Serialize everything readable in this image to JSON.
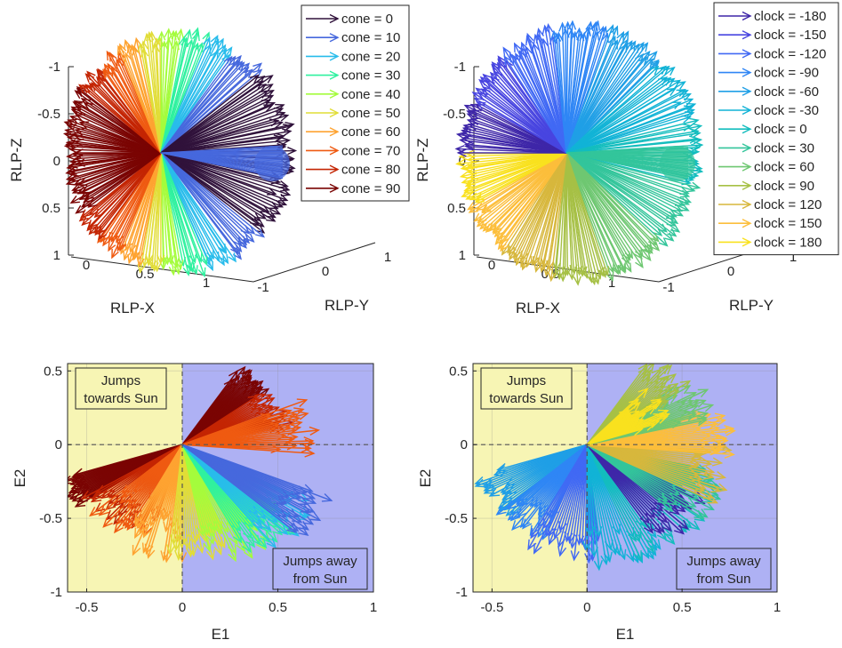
{
  "chart_data": [
    {
      "type": "quiver3d",
      "xlabel": "RLP-X",
      "ylabel": "RLP-Y",
      "zlabel": "RLP-Z",
      "x_ticks": [
        "0",
        "0.5",
        "1"
      ],
      "y_ticks": [
        "-1",
        "0",
        "1"
      ],
      "z_ticks": [
        "-1",
        "-0.5",
        "0",
        "0.5",
        "1"
      ],
      "legend_placement": "top-right",
      "color_by": "cone",
      "legend": [
        {
          "label": "cone = 0",
          "color": "#30123b"
        },
        {
          "label": "cone = 10",
          "color": "#4668dd"
        },
        {
          "label": "cone = 20",
          "color": "#28bceb"
        },
        {
          "label": "cone = 30",
          "color": "#2ff19f"
        },
        {
          "label": "cone = 40",
          "color": "#a4fc3c"
        },
        {
          "label": "cone = 50",
          "color": "#e1dd37"
        },
        {
          "label": "cone = 60",
          "color": "#fea331"
        },
        {
          "label": "cone = 70",
          "color": "#ef5a11"
        },
        {
          "label": "cone = 80",
          "color": "#c42503"
        },
        {
          "label": "cone = 90",
          "color": "#7a0403"
        }
      ]
    },
    {
      "type": "quiver3d",
      "xlabel": "RLP-X",
      "ylabel": "RLP-Y",
      "zlabel": "RLP-Z",
      "x_ticks": [
        "0",
        "0.5",
        "1"
      ],
      "y_ticks": [
        "-1",
        "0",
        "1"
      ],
      "z_ticks": [
        "-1",
        "-0.5",
        "0",
        "0.5",
        "1"
      ],
      "legend_placement": "top-right",
      "color_by": "clock",
      "legend": [
        {
          "label": "clock = -180",
          "color": "#3e26a8"
        },
        {
          "label": "clock = -150",
          "color": "#4845e0"
        },
        {
          "label": "clock = -120",
          "color": "#4169f4"
        },
        {
          "label": "clock = -90",
          "color": "#2f86f5"
        },
        {
          "label": "clock = -60",
          "color": "#1f9fe6"
        },
        {
          "label": "clock = -30",
          "color": "#11b3d6"
        },
        {
          "label": "clock = 0",
          "color": "#13bdbe"
        },
        {
          "label": "clock = 30",
          "color": "#33c59b"
        },
        {
          "label": "clock = 60",
          "color": "#6ec771"
        },
        {
          "label": "clock = 90",
          "color": "#a6c045"
        },
        {
          "label": "clock = 120",
          "color": "#d7b73c"
        },
        {
          "label": "clock = 150",
          "color": "#fcbe3b"
        },
        {
          "label": "clock = 180",
          "color": "#f9e11e"
        }
      ]
    },
    {
      "type": "quiver",
      "xlabel": "E1",
      "ylabel": "E2",
      "xlim": [
        -0.6,
        1
      ],
      "ylim": [
        -1,
        0.55
      ],
      "x_ticks": [
        "-0.5",
        "0",
        "0.5",
        "1"
      ],
      "y_ticks": [
        "-1",
        "-0.5",
        "0",
        "0.5"
      ],
      "grid": true,
      "reference_lines": {
        "x": 0,
        "y": 0,
        "style": "dashed"
      },
      "regions": [
        {
          "label": "Jumps towards Sun",
          "lines": [
            "Jumps",
            "towards Sun"
          ],
          "x_range": [
            -0.6,
            0
          ],
          "color": "#f7f5b4"
        },
        {
          "label": "Jumps away from Sun",
          "lines": [
            "Jumps away",
            "from Sun"
          ],
          "x_range": [
            0,
            1
          ],
          "color": "#aeb1f4"
        }
      ],
      "color_by": "cone",
      "vector_groups": [
        {
          "color": "#7a0403",
          "angle_range_deg": [
            200,
            217
          ],
          "length_range": [
            0.6,
            0.7
          ]
        },
        {
          "color": "#7a0403",
          "angle_range_deg": [
            40,
            60
          ],
          "length_range": [
            0.5,
            0.62
          ]
        },
        {
          "color": "#c42503",
          "angle_range_deg": [
            215,
            245
          ],
          "length_range": [
            0.5,
            0.65
          ]
        },
        {
          "color": "#c42503",
          "angle_range_deg": [
            12,
            40
          ],
          "length_range": [
            0.45,
            0.6
          ]
        },
        {
          "color": "#ef5a11",
          "angle_range_deg": [
            225,
            255
          ],
          "length_range": [
            0.4,
            0.7
          ]
        },
        {
          "color": "#ef5a11",
          "angle_range_deg": [
            -5,
            25
          ],
          "length_range": [
            0.5,
            0.72
          ]
        },
        {
          "color": "#fea331",
          "angle_range_deg": [
            245,
            270
          ],
          "length_range": [
            0.5,
            0.8
          ]
        },
        {
          "color": "#e1dd37",
          "angle_range_deg": [
            265,
            290
          ],
          "length_range": [
            0.6,
            0.8
          ]
        },
        {
          "color": "#a4fc3c",
          "angle_range_deg": [
            280,
            305
          ],
          "length_range": [
            0.6,
            0.85
          ]
        },
        {
          "color": "#2ff19f",
          "angle_range_deg": [
            295,
            320
          ],
          "length_range": [
            0.6,
            0.85
          ]
        },
        {
          "color": "#28bceb",
          "angle_range_deg": [
            305,
            330
          ],
          "length_range": [
            0.6,
            0.88
          ]
        },
        {
          "color": "#4668dd",
          "angle_range_deg": [
            315,
            335
          ],
          "length_range": [
            0.65,
            0.9
          ]
        }
      ]
    },
    {
      "type": "quiver",
      "xlabel": "E1",
      "ylabel": "E2",
      "xlim": [
        -0.6,
        1
      ],
      "ylim": [
        -1,
        0.55
      ],
      "x_ticks": [
        "-0.5",
        "0",
        "0.5",
        "1"
      ],
      "y_ticks": [
        "-1",
        "-0.5",
        "0",
        "0.5"
      ],
      "grid": true,
      "reference_lines": {
        "x": 0,
        "y": 0,
        "style": "dashed"
      },
      "regions": [
        {
          "label": "Jumps towards Sun",
          "lines": [
            "Jumps",
            "towards Sun"
          ],
          "x_range": [
            -0.6,
            0
          ],
          "color": "#f7f5b4"
        },
        {
          "label": "Jumps away from Sun",
          "lines": [
            "Jumps away",
            "from Sun"
          ],
          "x_range": [
            0,
            1
          ],
          "color": "#aeb1f4"
        }
      ],
      "color_by": "clock",
      "vector_groups": [
        {
          "color": "#1f9fe6",
          "angle_range_deg": [
            200,
            230
          ],
          "length_range": [
            0.5,
            0.65
          ]
        },
        {
          "color": "#2f86f5",
          "angle_range_deg": [
            225,
            250
          ],
          "length_range": [
            0.5,
            0.7
          ]
        },
        {
          "color": "#4169f4",
          "angle_range_deg": [
            245,
            275
          ],
          "length_range": [
            0.6,
            0.8
          ]
        },
        {
          "color": "#11b3d6",
          "angle_range_deg": [
            270,
            300
          ],
          "length_range": [
            0.6,
            0.85
          ]
        },
        {
          "color": "#13bdbe",
          "angle_range_deg": [
            290,
            320
          ],
          "length_range": [
            0.6,
            0.85
          ]
        },
        {
          "color": "#3e26a8",
          "angle_range_deg": [
            300,
            330
          ],
          "length_range": [
            0.55,
            0.8
          ]
        },
        {
          "color": "#33c59b",
          "angle_range_deg": [
            315,
            345
          ],
          "length_range": [
            0.55,
            0.8
          ]
        },
        {
          "color": "#d7b73c",
          "angle_range_deg": [
            330,
            360
          ],
          "length_range": [
            0.6,
            0.8
          ]
        },
        {
          "color": "#fcbe3b",
          "angle_range_deg": [
            -5,
            20
          ],
          "length_range": [
            0.6,
            0.8
          ]
        },
        {
          "color": "#6ec771",
          "angle_range_deg": [
            15,
            40
          ],
          "length_range": [
            0.5,
            0.75
          ]
        },
        {
          "color": "#a6c045",
          "angle_range_deg": [
            35,
            60
          ],
          "length_range": [
            0.5,
            0.7
          ]
        },
        {
          "color": "#f9e11e",
          "angle_range_deg": [
            20,
            50
          ],
          "length_range": [
            0.3,
            0.5
          ]
        }
      ]
    }
  ]
}
